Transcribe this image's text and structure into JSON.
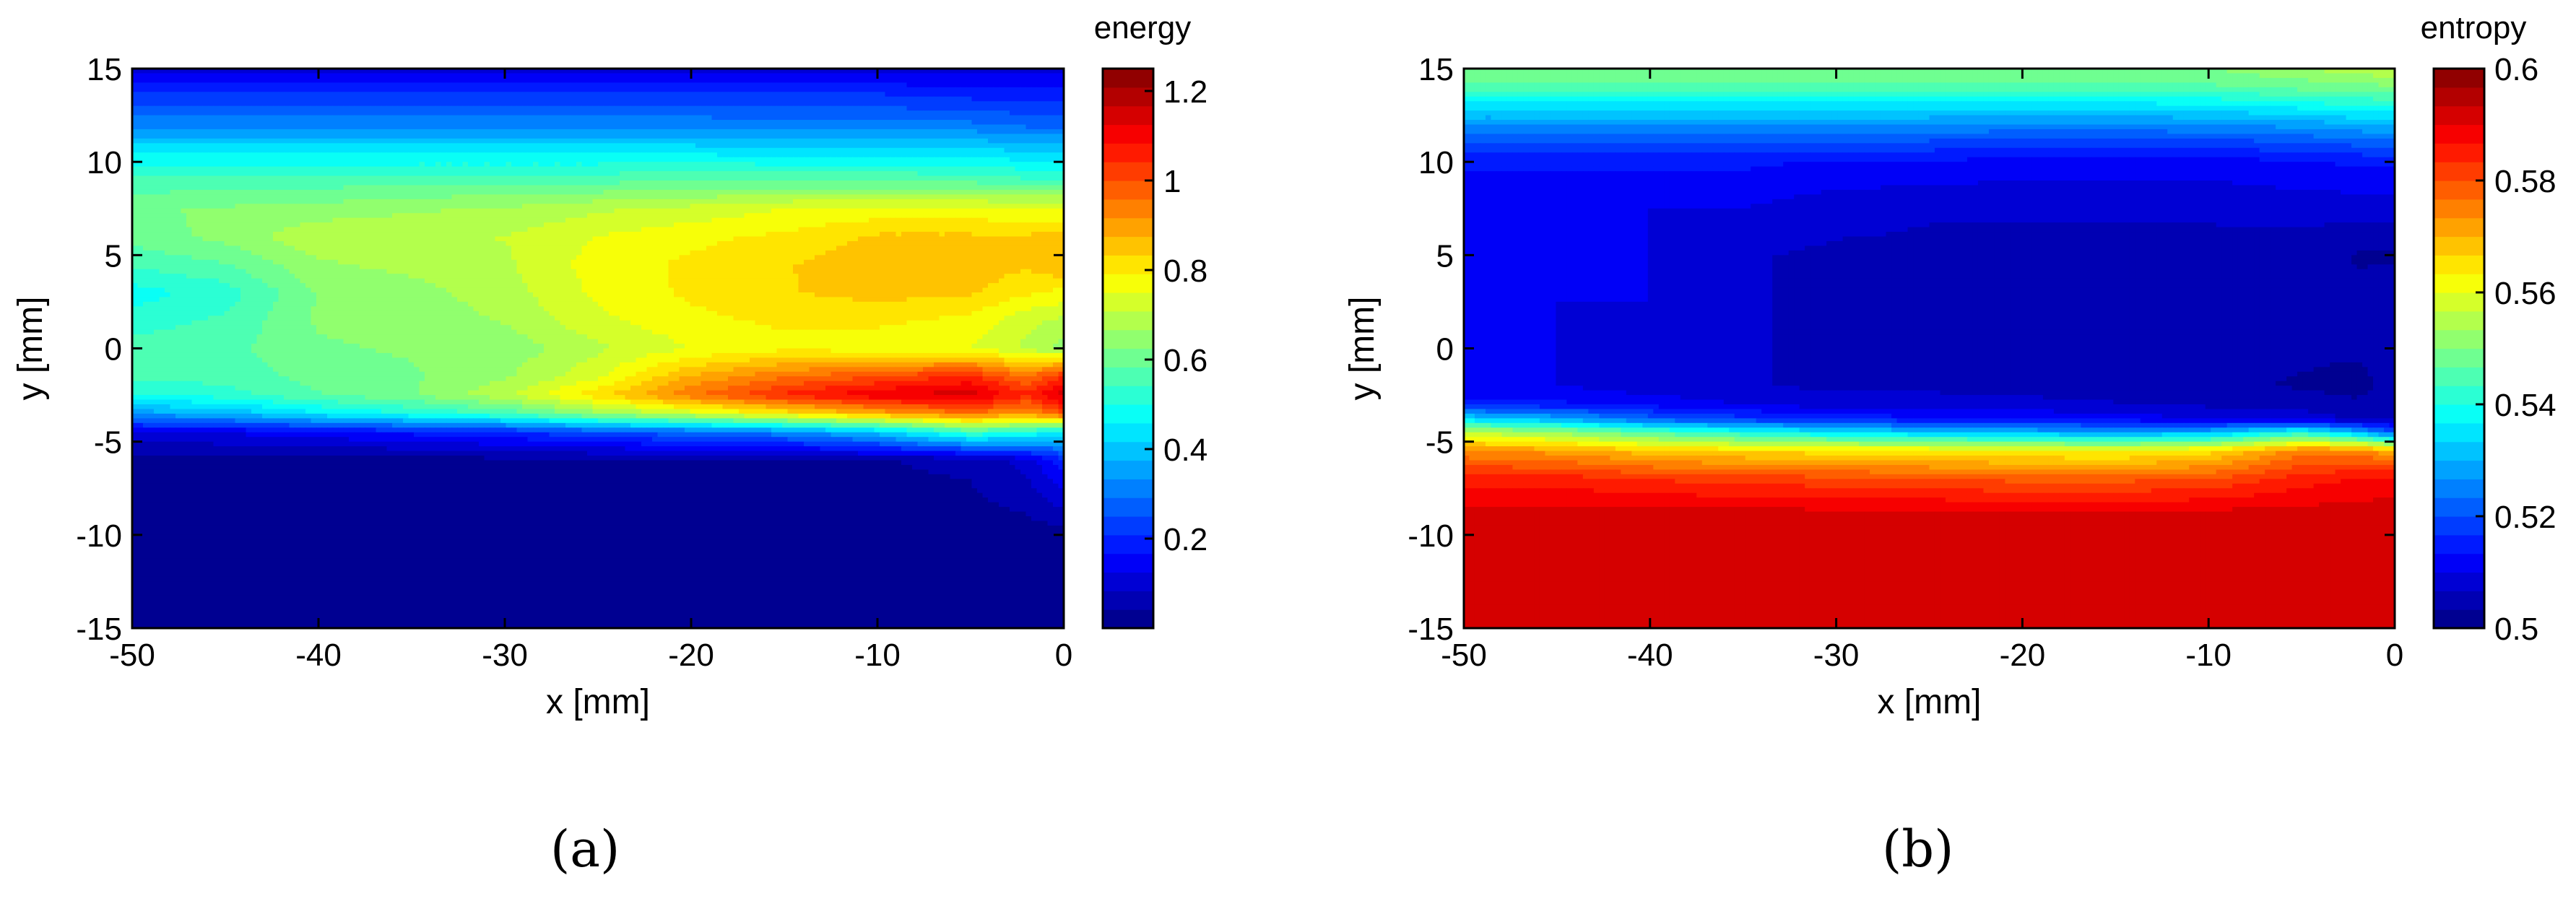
{
  "chart_data": [
    {
      "type": "heatmap",
      "panel_label": "(a)",
      "colorbar_title": "energy",
      "xlabel": "x [mm]",
      "ylabel": "y [mm]",
      "xlim": [
        -50,
        0
      ],
      "ylim": [
        -15,
        15
      ],
      "clim": [
        0,
        1.25
      ],
      "xticks": [
        -50,
        -40,
        -30,
        -20,
        -10,
        0
      ],
      "yticks": [
        15,
        10,
        5,
        0,
        -5,
        -10,
        -15
      ],
      "colorbar_ticks": [
        {
          "value": 1.2,
          "label": "1.2"
        },
        {
          "value": 1.0,
          "label": "1"
        },
        {
          "value": 0.8,
          "label": "0.8"
        },
        {
          "value": 0.6,
          "label": "0.6"
        },
        {
          "value": 0.4,
          "label": "0.4"
        },
        {
          "value": 0.2,
          "label": "0.2"
        }
      ],
      "y_grid": [
        15,
        13.5,
        12,
        10.5,
        9,
        7.5,
        6,
        4.5,
        3,
        1.5,
        0,
        -1.5,
        -2.5,
        -3.5,
        -4.5,
        -6,
        -10,
        -15
      ],
      "x_grid": [
        -50,
        -45,
        -40,
        -35,
        -30,
        -25,
        -20,
        -15,
        -10,
        -5,
        -2,
        0
      ],
      "z": [
        [
          0.1,
          0.1,
          0.1,
          0.1,
          0.1,
          0.1,
          0.1,
          0.1,
          0.1,
          0.1,
          0.1,
          0.1
        ],
        [
          0.22,
          0.22,
          0.22,
          0.22,
          0.22,
          0.22,
          0.22,
          0.22,
          0.22,
          0.2,
          0.2,
          0.2
        ],
        [
          0.32,
          0.32,
          0.32,
          0.32,
          0.32,
          0.32,
          0.32,
          0.3,
          0.3,
          0.3,
          0.28,
          0.28
        ],
        [
          0.45,
          0.45,
          0.45,
          0.45,
          0.45,
          0.45,
          0.45,
          0.44,
          0.44,
          0.44,
          0.42,
          0.42
        ],
        [
          0.55,
          0.56,
          0.56,
          0.57,
          0.57,
          0.57,
          0.58,
          0.58,
          0.58,
          0.57,
          0.55,
          0.55
        ],
        [
          0.62,
          0.63,
          0.64,
          0.66,
          0.67,
          0.7,
          0.72,
          0.75,
          0.76,
          0.76,
          0.75,
          0.75
        ],
        [
          0.6,
          0.64,
          0.7,
          0.7,
          0.71,
          0.75,
          0.78,
          0.8,
          0.84,
          0.84,
          0.84,
          0.85
        ],
        [
          0.55,
          0.58,
          0.66,
          0.68,
          0.7,
          0.77,
          0.8,
          0.83,
          0.86,
          0.86,
          0.84,
          0.88
        ],
        [
          0.48,
          0.52,
          0.63,
          0.65,
          0.69,
          0.76,
          0.8,
          0.83,
          0.85,
          0.84,
          0.8,
          0.78
        ],
        [
          0.52,
          0.55,
          0.63,
          0.64,
          0.67,
          0.74,
          0.78,
          0.8,
          0.8,
          0.78,
          0.72,
          0.7
        ],
        [
          0.56,
          0.57,
          0.62,
          0.63,
          0.64,
          0.7,
          0.75,
          0.78,
          0.77,
          0.75,
          0.7,
          0.65
        ],
        [
          0.55,
          0.56,
          0.6,
          0.62,
          0.66,
          0.74,
          0.88,
          0.95,
          1.0,
          1.05,
          0.95,
          1.05
        ],
        [
          0.5,
          0.52,
          0.58,
          0.62,
          0.7,
          0.82,
          0.95,
          1.05,
          1.12,
          1.15,
          1.05,
          1.15
        ],
        [
          0.35,
          0.38,
          0.45,
          0.5,
          0.55,
          0.65,
          0.72,
          0.8,
          0.88,
          0.95,
          0.9,
          1.0
        ],
        [
          0.12,
          0.13,
          0.15,
          0.18,
          0.2,
          0.25,
          0.28,
          0.32,
          0.4,
          0.55,
          0.5,
          0.45
        ],
        [
          0.02,
          0.02,
          0.02,
          0.02,
          0.03,
          0.03,
          0.03,
          0.03,
          0.04,
          0.05,
          0.1,
          0.2
        ],
        [
          0.02,
          0.02,
          0.02,
          0.02,
          0.02,
          0.02,
          0.02,
          0.02,
          0.02,
          0.02,
          0.02,
          0.02
        ],
        [
          0.02,
          0.02,
          0.02,
          0.02,
          0.02,
          0.02,
          0.02,
          0.02,
          0.02,
          0.02,
          0.02,
          0.02
        ]
      ]
    },
    {
      "type": "heatmap",
      "panel_label": "(b)",
      "colorbar_title": "entropy",
      "xlabel": "x [mm]",
      "ylabel": "y [mm]",
      "xlim": [
        -50,
        0
      ],
      "ylim": [
        -15,
        15
      ],
      "clim": [
        0.5,
        0.6
      ],
      "xticks": [
        -50,
        -40,
        -30,
        -20,
        -10,
        0
      ],
      "yticks": [
        15,
        10,
        5,
        0,
        -5,
        -10,
        -15
      ],
      "colorbar_ticks": [
        {
          "value": 0.6,
          "label": "0.6"
        },
        {
          "value": 0.58,
          "label": "0.58"
        },
        {
          "value": 0.56,
          "label": "0.56"
        },
        {
          "value": 0.54,
          "label": "0.54"
        },
        {
          "value": 0.52,
          "label": "0.52"
        },
        {
          "value": 0.5,
          "label": "0.5"
        }
      ],
      "y_grid": [
        15,
        14,
        13,
        12,
        11,
        10,
        7.5,
        5,
        2.5,
        0,
        -2,
        -3,
        -3.8,
        -4.5,
        -5.5,
        -7,
        -9,
        -15
      ],
      "x_grid": [
        -50,
        -45,
        -40,
        -35,
        -30,
        -25,
        -20,
        -15,
        -10,
        -5,
        -2,
        0
      ],
      "z": [
        [
          0.55,
          0.55,
          0.55,
          0.55,
          0.55,
          0.55,
          0.55,
          0.55,
          0.55,
          0.553,
          0.556,
          0.556
        ],
        [
          0.545,
          0.545,
          0.545,
          0.545,
          0.545,
          0.545,
          0.545,
          0.545,
          0.546,
          0.548,
          0.548,
          0.55
        ],
        [
          0.535,
          0.535,
          0.535,
          0.535,
          0.535,
          0.535,
          0.535,
          0.535,
          0.536,
          0.538,
          0.54,
          0.54
        ],
        [
          0.527,
          0.527,
          0.527,
          0.527,
          0.527,
          0.527,
          0.526,
          0.526,
          0.527,
          0.528,
          0.53,
          0.53
        ],
        [
          0.519,
          0.519,
          0.52,
          0.52,
          0.519,
          0.519,
          0.518,
          0.518,
          0.518,
          0.52,
          0.521,
          0.522
        ],
        [
          0.514,
          0.514,
          0.514,
          0.514,
          0.513,
          0.513,
          0.512,
          0.512,
          0.512,
          0.513,
          0.514,
          0.514
        ],
        [
          0.51,
          0.51,
          0.51,
          0.51,
          0.508,
          0.507,
          0.507,
          0.507,
          0.507,
          0.508,
          0.508,
          0.508
        ],
        [
          0.51,
          0.51,
          0.51,
          0.507,
          0.506,
          0.506,
          0.506,
          0.506,
          0.506,
          0.505,
          0.503,
          0.503
        ],
        [
          0.51,
          0.51,
          0.51,
          0.507,
          0.506,
          0.506,
          0.506,
          0.506,
          0.506,
          0.505,
          0.504,
          0.505
        ],
        [
          0.51,
          0.51,
          0.508,
          0.507,
          0.506,
          0.506,
          0.505,
          0.504,
          0.504,
          0.504,
          0.504,
          0.505
        ],
        [
          0.51,
          0.51,
          0.508,
          0.507,
          0.506,
          0.506,
          0.505,
          0.504,
          0.504,
          0.503,
          0.502,
          0.505
        ],
        [
          0.514,
          0.514,
          0.512,
          0.51,
          0.508,
          0.508,
          0.508,
          0.507,
          0.506,
          0.505,
          0.504,
          0.505
        ],
        [
          0.535,
          0.53,
          0.522,
          0.518,
          0.516,
          0.514,
          0.513,
          0.512,
          0.51,
          0.509,
          0.506,
          0.506
        ],
        [
          0.556,
          0.552,
          0.545,
          0.54,
          0.535,
          0.532,
          0.53,
          0.528,
          0.53,
          0.54,
          0.53,
          0.52
        ],
        [
          0.574,
          0.572,
          0.568,
          0.566,
          0.565,
          0.564,
          0.563,
          0.562,
          0.565,
          0.575,
          0.575,
          0.57
        ],
        [
          0.585,
          0.585,
          0.583,
          0.582,
          0.581,
          0.58,
          0.579,
          0.579,
          0.58,
          0.585,
          0.587,
          0.588
        ],
        [
          0.592,
          0.592,
          0.592,
          0.592,
          0.592,
          0.592,
          0.592,
          0.592,
          0.592,
          0.592,
          0.592,
          0.592
        ],
        [
          0.592,
          0.592,
          0.592,
          0.592,
          0.592,
          0.592,
          0.592,
          0.592,
          0.592,
          0.592,
          0.592,
          0.592
        ]
      ]
    }
  ]
}
